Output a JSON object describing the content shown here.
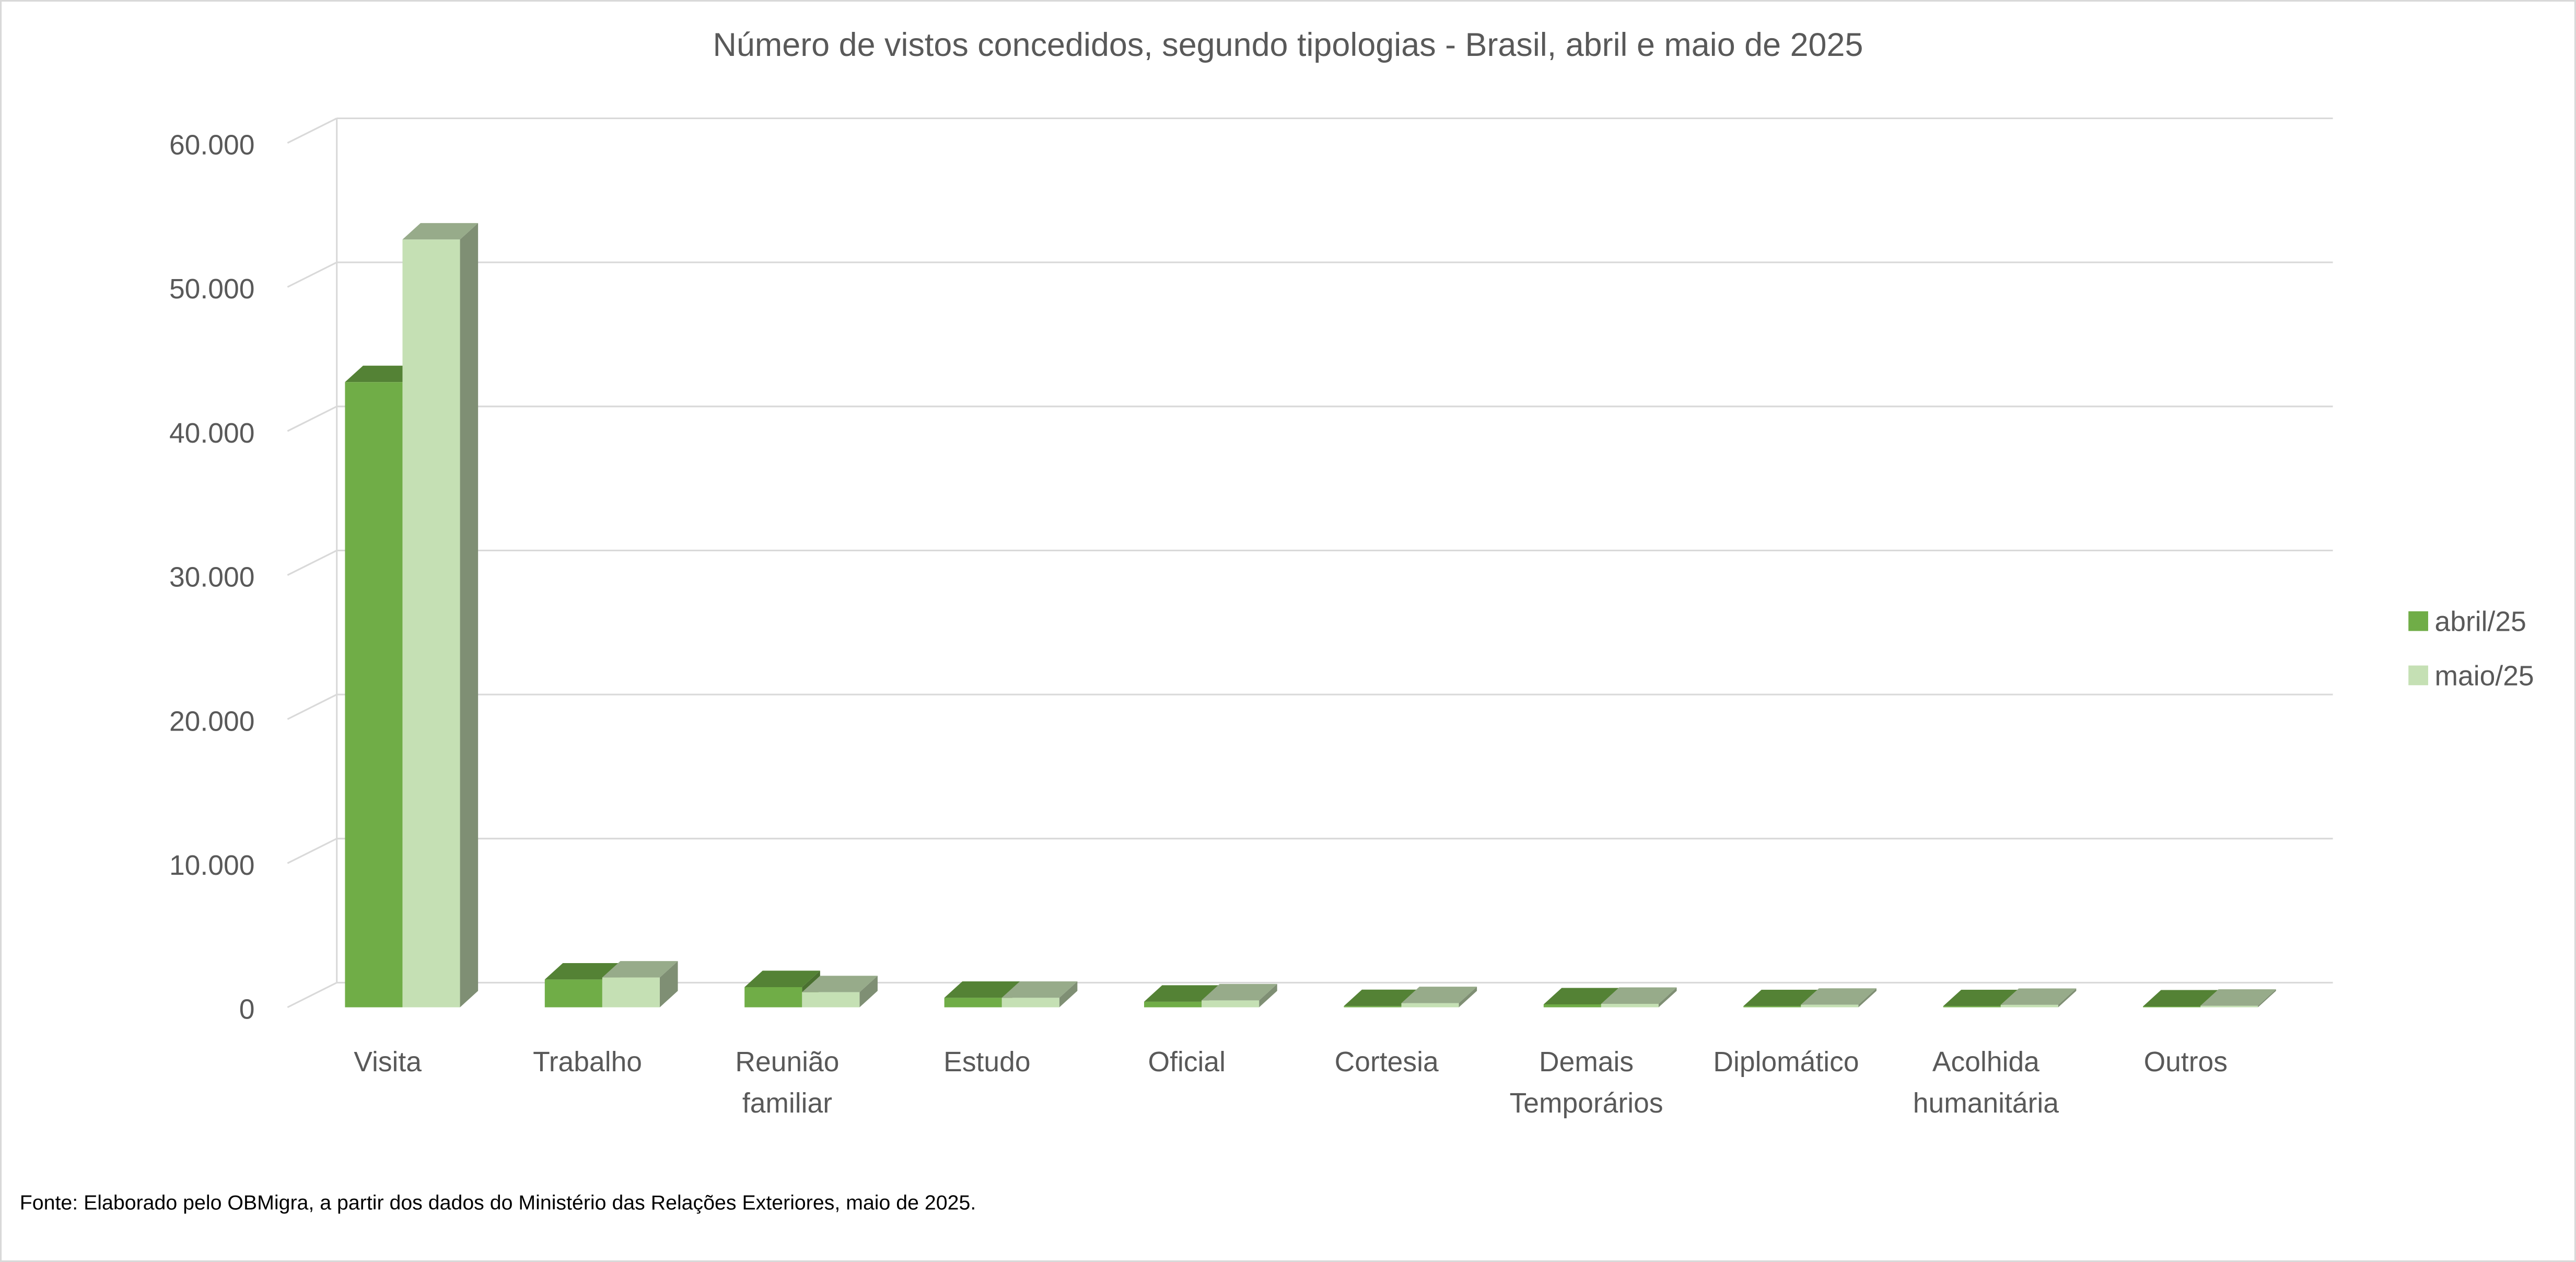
{
  "chart_data": {
    "type": "bar",
    "style": "3d-clustered-column",
    "title": "Número de vistos concedidos, segundo tipologias - Brasil, abril e maio de 2025",
    "xlabel": "",
    "ylabel": "",
    "ylim": [
      0,
      60000
    ],
    "yticks": [
      "0",
      "10.000",
      "20.000",
      "30.000",
      "40.000",
      "50.000",
      "60.000"
    ],
    "grid": true,
    "legend_position": "right",
    "categories": [
      [
        "Visita"
      ],
      [
        "Trabalho"
      ],
      [
        "Reunião",
        "familiar"
      ],
      [
        "Estudo"
      ],
      [
        "Oficial"
      ],
      [
        "Cortesia"
      ],
      [
        "Demais",
        "Temporários"
      ],
      [
        "Diplomático"
      ],
      [
        "Acolhida",
        "humanitária"
      ],
      [
        "Outros"
      ]
    ],
    "series": [
      {
        "name": "abril/25",
        "color": "#70AD47",
        "values": [
          43400,
          1930,
          1400,
          660,
          390,
          85,
          205,
          80,
          80,
          60
        ]
      },
      {
        "name": "maio/25",
        "color": "#C5E0B4",
        "values": [
          53300,
          2070,
          1050,
          660,
          480,
          290,
          240,
          180,
          170,
          110
        ]
      }
    ],
    "source": "Fonte: Elaborado pelo OBMigra, a partir dos dados do Ministério das Relações Exteriores, maio  de 2025."
  }
}
